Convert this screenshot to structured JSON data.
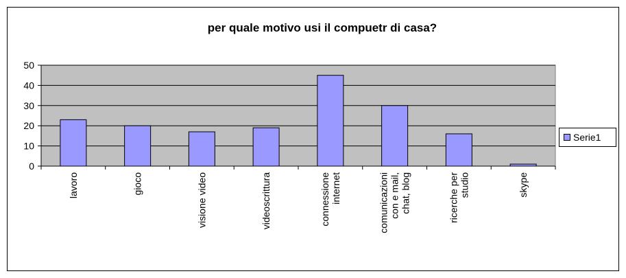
{
  "chart_data": {
    "type": "bar",
    "title": "per quale motivo usi il compuetr di casa?",
    "categories": [
      "lavoro",
      "gioco",
      "visione video",
      "videoscrittura",
      "connessione internet",
      "comunicazioni con e mail, chat, blog",
      "ricerche per studio",
      "skype"
    ],
    "series": [
      {
        "name": "Serie1",
        "color": "#9999ff",
        "values": [
          23,
          20,
          17,
          19,
          45,
          30,
          16,
          1
        ]
      }
    ],
    "ylim": [
      0,
      50
    ],
    "yticks": [
      0,
      10,
      20,
      30,
      40,
      50
    ],
    "grid": true,
    "legend": "right"
  }
}
